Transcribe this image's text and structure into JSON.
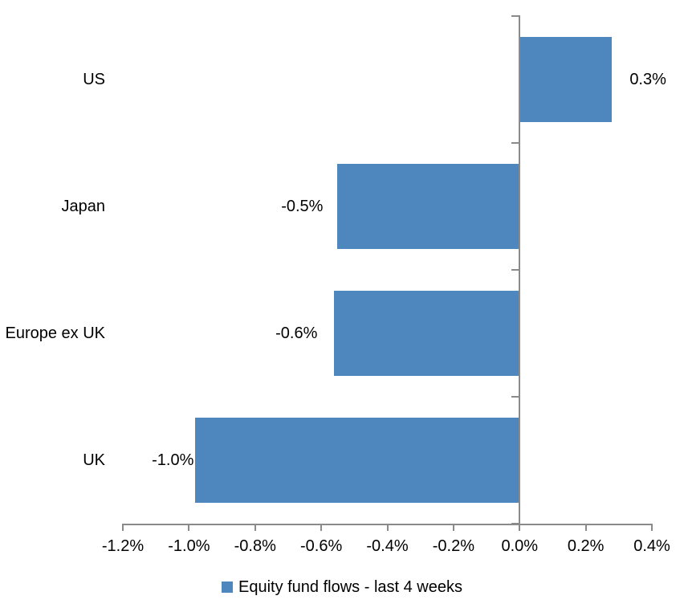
{
  "chart_data": {
    "type": "bar",
    "orientation": "horizontal",
    "title": "",
    "xlabel": "",
    "ylabel": "",
    "categories": [
      "US",
      "Japan",
      "Europe ex UK",
      "UK"
    ],
    "series": [
      {
        "name": "Equity fund flows - last 4 weeks",
        "values": [
          0.3,
          -0.5,
          -0.6,
          -1.0
        ],
        "value_labels": [
          "0.3%",
          "-0.5%",
          "-0.6%",
          "-1.0%"
        ],
        "plotted_values": [
          0.28,
          -0.55,
          -0.56,
          -0.98
        ]
      }
    ],
    "x_ticks": [
      -1.2,
      -1.0,
      -0.8,
      -0.6,
      -0.4,
      -0.2,
      0.0,
      0.2,
      0.4
    ],
    "x_tick_labels": [
      "-1.2%",
      "-1.0%",
      "-0.8%",
      "-0.6%",
      "-0.4%",
      "-0.2%",
      "0.0%",
      "0.2%",
      "0.4%"
    ],
    "xlim": [
      -1.2,
      0.4
    ],
    "grid": false,
    "legend": {
      "position": "bottom",
      "label": "Equity fund flows - last 4 weeks"
    },
    "colors": {
      "bar": "#4E87BD",
      "axis": "#8A8A8A",
      "text": "#000000"
    }
  }
}
